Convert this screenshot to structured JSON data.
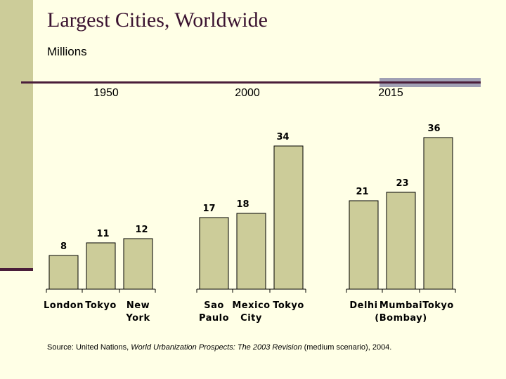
{
  "slide": {
    "title": "Largest Cities, Worldwide",
    "subtitle": "Millions"
  },
  "colors": {
    "bar_fill": "#CCCC99",
    "bar_stroke": "#000000",
    "band": "#CCCC99",
    "rule": "#4A1E3A",
    "background": "#FFFFE6"
  },
  "chart_data": {
    "type": "bar",
    "title": "Largest Cities, Worldwide",
    "ylabel": "Millions",
    "ylim": [
      0,
      36
    ],
    "grid": false,
    "groups": [
      {
        "year": "1950",
        "bars": [
          {
            "city": [
              "London"
            ],
            "value": 8
          },
          {
            "city": [
              "Tokyo"
            ],
            "value": 11
          },
          {
            "city": [
              "New",
              "York"
            ],
            "value": 12
          }
        ]
      },
      {
        "year": "2000",
        "bars": [
          {
            "city": [
              "Sao",
              "Paulo"
            ],
            "value": 17
          },
          {
            "city": [
              "Mexico",
              "City"
            ],
            "value": 18
          },
          {
            "city": [
              "Tokyo"
            ],
            "value": 34
          }
        ]
      },
      {
        "year": "2015",
        "bars": [
          {
            "city": [
              "Delhi"
            ],
            "value": 21
          },
          {
            "city": [
              "Mumbai",
              "(Bombay)"
            ],
            "value": 23
          },
          {
            "city": [
              "Tokyo"
            ],
            "value": 36
          }
        ]
      }
    ]
  },
  "source": {
    "prefix": "Source: United Nations, ",
    "publication": "World Urbanization Prospects: The 2003 Revision",
    "suffix": " (medium scenario), 2004."
  }
}
